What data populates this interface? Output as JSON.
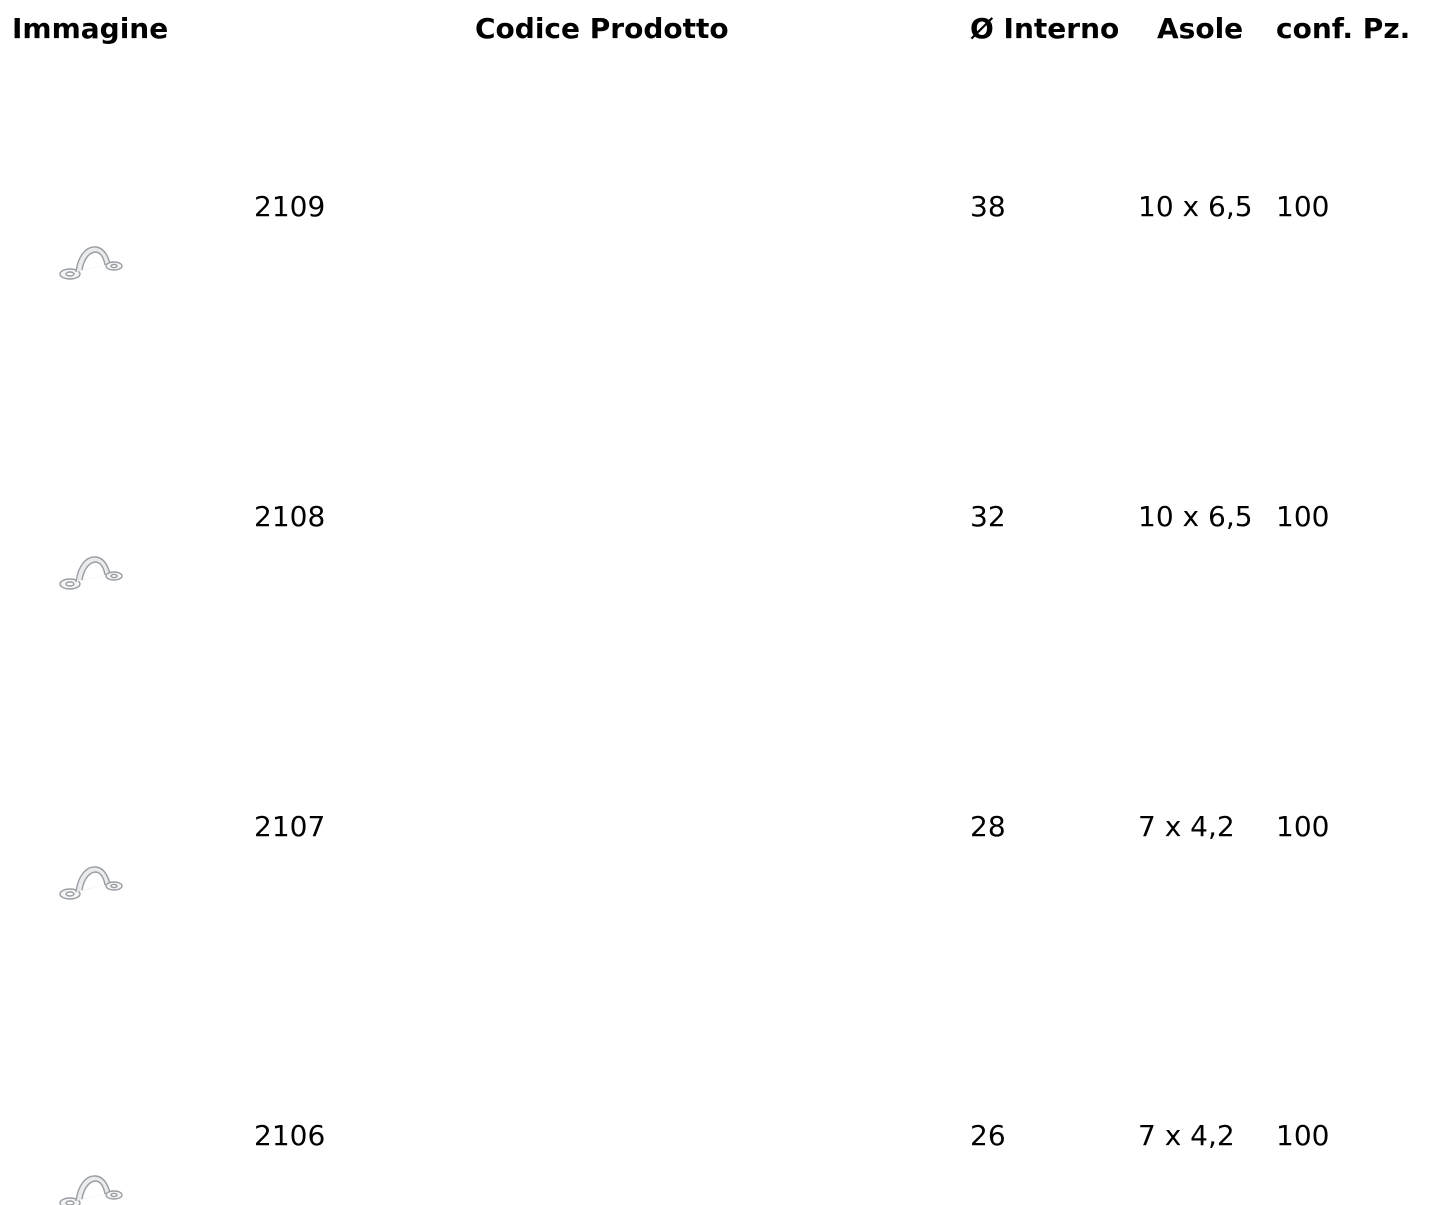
{
  "table": {
    "headers": {
      "image": "Immagine",
      "code": "Codice Prodotto",
      "inner_diameter": "Ø Interno",
      "slots": "Asole",
      "pack": "conf. Pz."
    },
    "rows": [
      {
        "code": "2109",
        "inner_diameter": "38",
        "slots": "10 x 6,5",
        "pack": "100",
        "icon": "pipe-clamp-icon"
      },
      {
        "code": "2108",
        "inner_diameter": "32",
        "slots": "10 x 6,5",
        "pack": "100",
        "icon": "pipe-clamp-icon"
      },
      {
        "code": "2107",
        "inner_diameter": "28",
        "slots": "7 x 4,2",
        "pack": "100",
        "icon": "pipe-clamp-icon"
      },
      {
        "code": "2106",
        "inner_diameter": "26",
        "slots": "7 x 4,2",
        "pack": "100",
        "icon": "pipe-clamp-icon"
      }
    ]
  }
}
